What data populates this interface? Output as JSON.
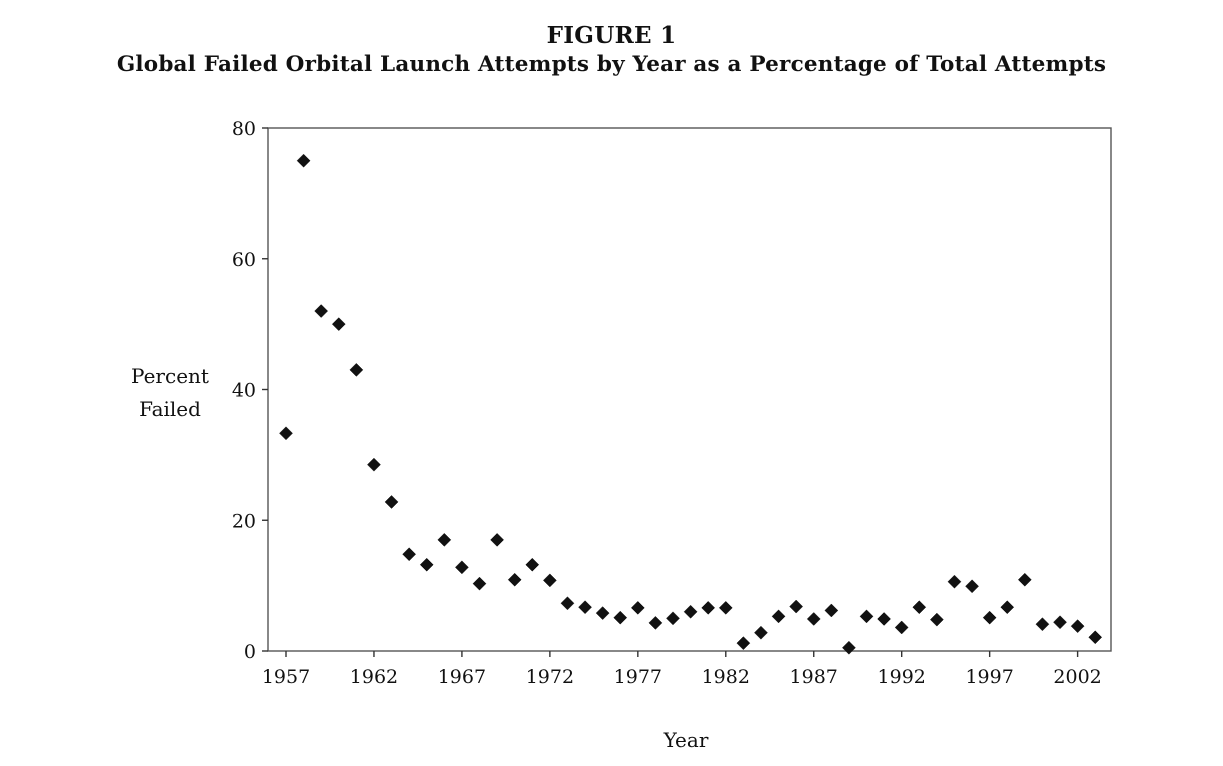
{
  "figure": {
    "label": "FIGURE 1",
    "title": "Global Failed Orbital Launch Attempts by Year as a Percentage of Total Attempts"
  },
  "chart_data": {
    "type": "scatter",
    "title": "Global Failed Orbital Launch Attempts by Year as a Percentage of Total Attempts",
    "xlabel": "Year",
    "ylabel_lines": [
      "Percent",
      "Failed"
    ],
    "xlim": [
      1957,
      2003.5
    ],
    "ylim": [
      0,
      80
    ],
    "xticks": [
      1957,
      1962,
      1967,
      1972,
      1977,
      1982,
      1987,
      1992,
      1997,
      2002
    ],
    "yticks": [
      0,
      20,
      40,
      60,
      80
    ],
    "grid": false,
    "legend": "none",
    "marker": "diamond",
    "color": "#111111",
    "x": [
      1957,
      1958,
      1959,
      1960,
      1961,
      1962,
      1963,
      1964,
      1965,
      1966,
      1967,
      1968,
      1969,
      1970,
      1971,
      1972,
      1973,
      1974,
      1975,
      1976,
      1977,
      1978,
      1979,
      1980,
      1981,
      1982,
      1983,
      1984,
      1985,
      1986,
      1987,
      1988,
      1989,
      1990,
      1991,
      1992,
      1993,
      1994,
      1995,
      1996,
      1997,
      1998,
      1999,
      2000,
      2001,
      2002,
      2003
    ],
    "y": [
      33.3,
      75.0,
      52.0,
      50.0,
      43.0,
      28.5,
      22.8,
      14.8,
      13.2,
      17.0,
      12.8,
      10.3,
      17.0,
      10.9,
      13.2,
      10.8,
      7.3,
      6.7,
      5.8,
      5.1,
      6.6,
      4.3,
      5.0,
      6.0,
      6.6,
      6.6,
      1.2,
      2.8,
      5.3,
      6.8,
      4.9,
      6.2,
      0.5,
      5.3,
      4.9,
      3.6,
      6.7,
      4.8,
      10.6,
      9.9,
      5.1,
      6.7,
      10.9,
      4.1,
      4.4,
      3.8,
      2.1
    ]
  }
}
